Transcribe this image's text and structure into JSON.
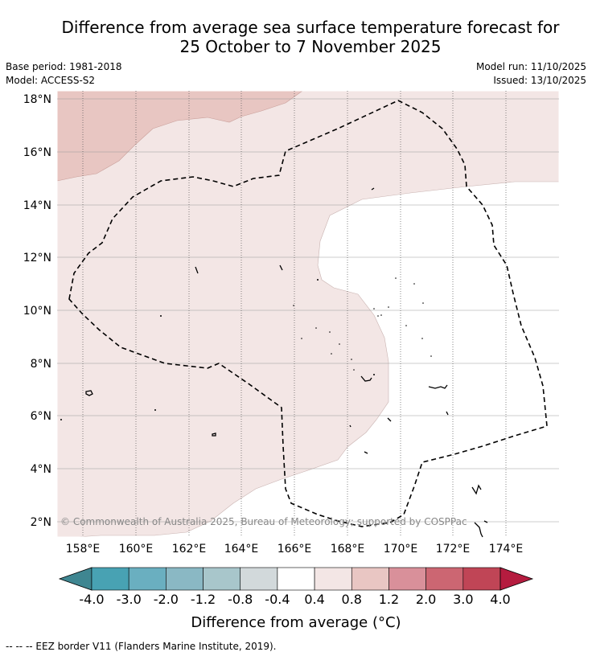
{
  "title_line1": "Difference from average sea surface temperature forecast for",
  "title_line2": "25 October to 7 November 2025",
  "base_period": "Base period: 1981-2018",
  "model": "Model: ACCESS-S2",
  "model_run": "Model run: 11/10/2025",
  "issued": "Issued: 13/10/2025",
  "lat_labels": [
    "18°N",
    "16°N",
    "14°N",
    "12°N",
    "10°N",
    "8°N",
    "6°N",
    "4°N",
    "2°N"
  ],
  "lon_labels": [
    "158°E",
    "160°E",
    "162°E",
    "164°E",
    "166°E",
    "168°E",
    "170°E",
    "172°E",
    "174°E"
  ],
  "copyright": "© Commonwealth of Australia 2025, Bureau of Meteorology; supported by COSPPac",
  "colorbar": {
    "ticks": [
      "-4.0",
      "-3.0",
      "-2.0",
      "-1.2",
      "-0.8",
      "-0.4",
      "0.4",
      "0.8",
      "1.2",
      "2.0",
      "3.0",
      "4.0"
    ],
    "colors": [
      "#3f8691",
      "#48a2b3",
      "#6aafc0",
      "#8ab8c4",
      "#a8c6cb",
      "#d2d9db",
      "#ffffff",
      "#f3e6e5",
      "#e9c6c3",
      "#d9909a",
      "#cc6672",
      "#c04556",
      "#b51c3f"
    ],
    "title": "Difference from average (°C)"
  },
  "footer": "--  --  -- EEZ border V11 (Flanders Marine Institute, 2019)."
}
